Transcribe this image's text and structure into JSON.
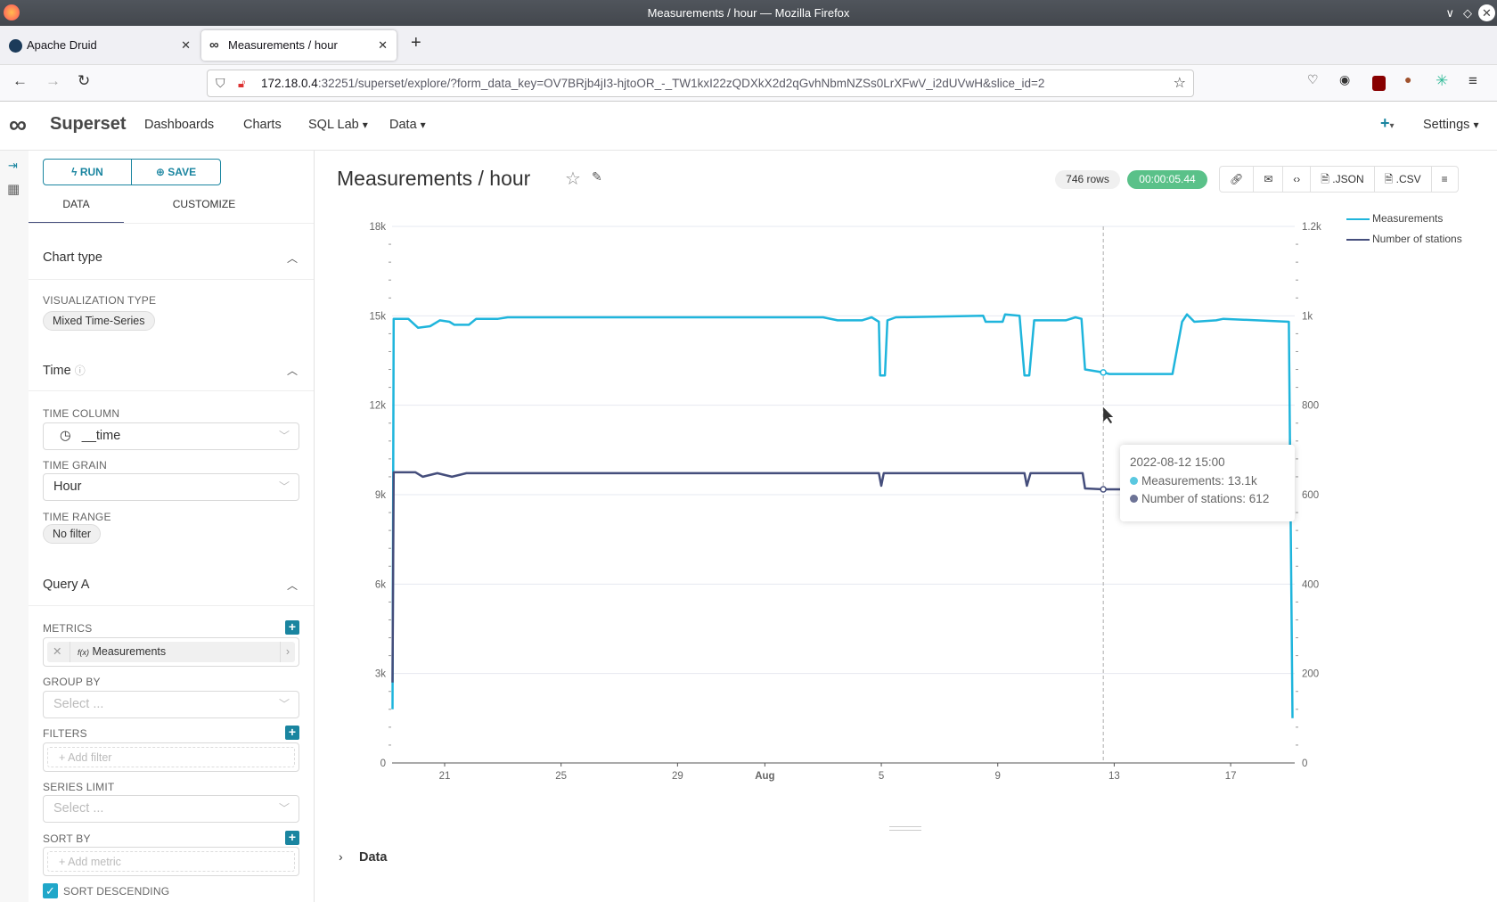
{
  "browser": {
    "window_title": "Measurements / hour — Mozilla Firefox",
    "tabs": [
      {
        "label": "Apache Druid",
        "active": false
      },
      {
        "label": "Measurements / hour",
        "active": true
      }
    ],
    "url_host": "172.18.0.4",
    "url_rest": ":32251/superset/explore/?form_data_key=OV7BRjb4jI3-hjtoOR_-_TW1kxI22zQDXkX2d2qGvhNbmNZSs0LrXFwV_i2dUVwH&slice_id=2"
  },
  "app": {
    "brand": "Superset",
    "menu": [
      "Dashboards",
      "Charts",
      "SQL Lab",
      "Data"
    ],
    "settings": "Settings",
    "plus": "+"
  },
  "sidebar": {
    "run": "RUN",
    "save": "SAVE",
    "tabs": [
      "DATA",
      "CUSTOMIZE"
    ],
    "chart_type_title": "Chart type",
    "viz_type_label": "VISUALIZATION TYPE",
    "viz_type": "Mixed Time-Series",
    "time_title": "Time",
    "time_column_label": "TIME COLUMN",
    "time_column": "__time",
    "time_grain_label": "TIME GRAIN",
    "time_grain": "Hour",
    "time_range_label": "TIME RANGE",
    "time_range": "No filter",
    "query_title": "Query A",
    "metrics_label": "METRICS",
    "metric": "Measurements",
    "metric_prefix": "f(x)",
    "group_by_label": "GROUP BY",
    "select_placeholder": "Select ...",
    "filters_label": "FILTERS",
    "add_filter": "Add filter",
    "series_limit_label": "SERIES LIMIT",
    "sort_by_label": "SORT BY",
    "add_metric": "Add metric",
    "sort_desc_label": "SORT DESCENDING",
    "sort_desc_checked": true
  },
  "main": {
    "title": "Measurements / hour",
    "rows": "746 rows",
    "duration": "00:00:05.44",
    "json": ".JSON",
    "csv": ".CSV",
    "data_section": "Data"
  },
  "tooltip": {
    "time": "2022-08-12 15:00",
    "lines": [
      "Measurements: 13.1k",
      "Number of stations: 612"
    ]
  },
  "chart_data": {
    "type": "line",
    "x_ticks": [
      {
        "date": "2022-07-21",
        "label": "21"
      },
      {
        "date": "2022-07-25",
        "label": "25"
      },
      {
        "date": "2022-07-29",
        "label": "29"
      },
      {
        "date": "2022-08-01",
        "label": "Aug"
      },
      {
        "date": "2022-08-05",
        "label": "5"
      },
      {
        "date": "2022-08-09",
        "label": "9"
      },
      {
        "date": "2022-08-13",
        "label": "13"
      },
      {
        "date": "2022-08-17",
        "label": "17"
      }
    ],
    "y_left": {
      "ylim": [
        0,
        18000
      ],
      "ticks": [
        "0",
        "3k",
        "6k",
        "9k",
        "12k",
        "15k",
        "18k"
      ]
    },
    "y_right": {
      "ylim": [
        0,
        1200
      ],
      "ticks": [
        "0",
        "200",
        "400",
        "600",
        "800",
        "1k",
        "1.2k"
      ]
    },
    "legend_position": "top-right",
    "grid": true,
    "series": [
      {
        "name": "Measurements",
        "axis": "left",
        "color": "#1fb5dc",
        "points": [
          [
            "2022-07-19 05:00",
            1800
          ],
          [
            "2022-07-19 06:00",
            14900
          ],
          [
            "2022-07-19 18:00",
            14900
          ],
          [
            "2022-07-20 02:00",
            14600
          ],
          [
            "2022-07-20 12:00",
            14650
          ],
          [
            "2022-07-20 20:00",
            14850
          ],
          [
            "2022-07-21 04:00",
            14800
          ],
          [
            "2022-07-21 08:00",
            14700
          ],
          [
            "2022-07-21 20:00",
            14700
          ],
          [
            "2022-07-22 02:00",
            14900
          ],
          [
            "2022-07-22 20:00",
            14900
          ],
          [
            "2022-07-23 04:00",
            14950
          ],
          [
            "2022-08-03 00:00",
            14950
          ],
          [
            "2022-08-03 12:00",
            14850
          ],
          [
            "2022-08-04 08:00",
            14850
          ],
          [
            "2022-08-04 16:00",
            14950
          ],
          [
            "2022-08-04 22:00",
            14800
          ],
          [
            "2022-08-04 23:00",
            13000
          ],
          [
            "2022-08-05 03:00",
            13000
          ],
          [
            "2022-08-05 05:00",
            14850
          ],
          [
            "2022-08-05 12:00",
            14950
          ],
          [
            "2022-08-08 12:00",
            15000
          ],
          [
            "2022-08-08 14:00",
            14800
          ],
          [
            "2022-08-09 04:00",
            14800
          ],
          [
            "2022-08-09 06:00",
            15050
          ],
          [
            "2022-08-09 18:00",
            15000
          ],
          [
            "2022-08-09 22:00",
            13000
          ],
          [
            "2022-08-10 02:00",
            13000
          ],
          [
            "2022-08-10 06:00",
            14850
          ],
          [
            "2022-08-11 08:00",
            14850
          ],
          [
            "2022-08-11 16:00",
            14950
          ],
          [
            "2022-08-11 21:00",
            14900
          ],
          [
            "2022-08-12 00:00",
            13200
          ],
          [
            "2022-08-12 15:00",
            13100
          ],
          [
            "2022-08-12 20:00",
            13050
          ],
          [
            "2022-08-15 00:00",
            13050
          ],
          [
            "2022-08-15 08:00",
            14800
          ],
          [
            "2022-08-15 12:00",
            15050
          ],
          [
            "2022-08-15 18:00",
            14800
          ],
          [
            "2022-08-16 12:00",
            14850
          ],
          [
            "2022-08-16 18:00",
            14900
          ],
          [
            "2022-08-19 00:00",
            14800
          ],
          [
            "2022-08-19 03:00",
            1500
          ]
        ]
      },
      {
        "name": "Number of stations",
        "axis": "right",
        "color": "#454e7c",
        "points": [
          [
            "2022-07-19 05:00",
            180
          ],
          [
            "2022-07-19 06:00",
            650
          ],
          [
            "2022-07-20 00:00",
            650
          ],
          [
            "2022-07-20 06:00",
            640
          ],
          [
            "2022-07-20 18:00",
            648
          ],
          [
            "2022-07-21 06:00",
            640
          ],
          [
            "2022-07-21 18:00",
            648
          ],
          [
            "2022-08-04 22:00",
            648
          ],
          [
            "2022-08-05 00:00",
            620
          ],
          [
            "2022-08-05 02:00",
            648
          ],
          [
            "2022-08-09 22:00",
            648
          ],
          [
            "2022-08-10 00:00",
            620
          ],
          [
            "2022-08-10 03:00",
            648
          ],
          [
            "2022-08-11 22:00",
            648
          ],
          [
            "2022-08-12 00:00",
            614
          ],
          [
            "2022-08-12 15:00",
            612
          ],
          [
            "2022-08-15 00:00",
            612
          ],
          [
            "2022-08-15 10:00",
            648
          ],
          [
            "2022-08-19 00:00",
            648
          ],
          [
            "2022-08-19 03:00",
            650
          ]
        ]
      }
    ],
    "hover": {
      "date": "2022-08-12 15:00"
    }
  }
}
